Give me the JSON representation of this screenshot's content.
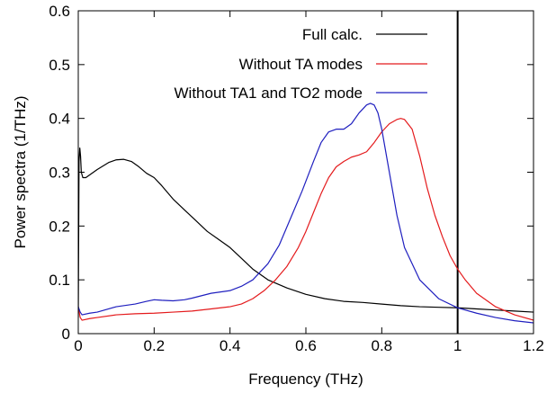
{
  "chart_data": {
    "type": "line",
    "xlabel": "Frequency (THz)",
    "ylabel": "Power spectra (1/THz)",
    "xlim": [
      0,
      1.2
    ],
    "ylim": [
      0,
      0.6
    ],
    "x_ticks": [
      0,
      0.2,
      0.4,
      0.6,
      0.8,
      1,
      1.2
    ],
    "x_tick_labels": [
      "0",
      "0.2",
      "0.4",
      "0.6",
      "0.8",
      "1",
      "1.2"
    ],
    "y_ticks": [
      0,
      0.1,
      0.2,
      0.3,
      0.4,
      0.5,
      0.6
    ],
    "y_tick_labels": [
      "0",
      "0.1",
      "0.2",
      "0.3",
      "0.4",
      "0.5",
      "0.6"
    ],
    "grid": false,
    "legend_position": "top-right",
    "reference_lines": [
      {
        "orientation": "vertical",
        "x": 1,
        "color": "#000000"
      }
    ],
    "series": [
      {
        "name": "Full calc.",
        "color": "#000000",
        "x": [
          0.0,
          0.002,
          0.004,
          0.006,
          0.008,
          0.012,
          0.02,
          0.03,
          0.05,
          0.08,
          0.1,
          0.12,
          0.14,
          0.16,
          0.18,
          0.2,
          0.22,
          0.25,
          0.28,
          0.31,
          0.34,
          0.37,
          0.4,
          0.43,
          0.46,
          0.5,
          0.55,
          0.6,
          0.65,
          0.7,
          0.75,
          0.8,
          0.85,
          0.9,
          0.95,
          1.0,
          1.05,
          1.1,
          1.15,
          1.2
        ],
        "y": [
          0.03,
          0.32,
          0.345,
          0.33,
          0.3,
          0.29,
          0.29,
          0.295,
          0.305,
          0.318,
          0.323,
          0.324,
          0.32,
          0.31,
          0.298,
          0.29,
          0.275,
          0.25,
          0.23,
          0.21,
          0.19,
          0.175,
          0.16,
          0.14,
          0.12,
          0.1,
          0.085,
          0.073,
          0.065,
          0.06,
          0.058,
          0.055,
          0.052,
          0.05,
          0.049,
          0.048,
          0.046,
          0.044,
          0.042,
          0.04
        ]
      },
      {
        "name": "Without TA modes",
        "color": "#e41a1c",
        "x": [
          0.0,
          0.005,
          0.01,
          0.03,
          0.05,
          0.1,
          0.15,
          0.2,
          0.25,
          0.3,
          0.35,
          0.4,
          0.43,
          0.46,
          0.49,
          0.52,
          0.55,
          0.58,
          0.6,
          0.62,
          0.64,
          0.66,
          0.68,
          0.7,
          0.72,
          0.74,
          0.76,
          0.78,
          0.8,
          0.82,
          0.84,
          0.85,
          0.86,
          0.88,
          0.9,
          0.92,
          0.94,
          0.96,
          0.98,
          1.0,
          1.02,
          1.05,
          1.1,
          1.15,
          1.2
        ],
        "y": [
          0.05,
          0.03,
          0.025,
          0.028,
          0.03,
          0.035,
          0.037,
          0.038,
          0.04,
          0.042,
          0.046,
          0.05,
          0.055,
          0.065,
          0.08,
          0.1,
          0.125,
          0.16,
          0.19,
          0.225,
          0.26,
          0.29,
          0.31,
          0.32,
          0.328,
          0.332,
          0.338,
          0.355,
          0.375,
          0.39,
          0.398,
          0.4,
          0.398,
          0.38,
          0.33,
          0.27,
          0.22,
          0.18,
          0.145,
          0.12,
          0.1,
          0.075,
          0.05,
          0.035,
          0.025
        ]
      },
      {
        "name": "Without TA1 and TO2 mode",
        "color": "#1f1fbf",
        "x": [
          0.0,
          0.005,
          0.01,
          0.03,
          0.05,
          0.1,
          0.15,
          0.18,
          0.2,
          0.22,
          0.25,
          0.28,
          0.3,
          0.35,
          0.4,
          0.43,
          0.46,
          0.5,
          0.53,
          0.56,
          0.59,
          0.62,
          0.64,
          0.66,
          0.68,
          0.7,
          0.72,
          0.74,
          0.76,
          0.77,
          0.78,
          0.79,
          0.8,
          0.82,
          0.84,
          0.86,
          0.9,
          0.95,
          1.0,
          1.05,
          1.1,
          1.15,
          1.2
        ],
        "y": [
          0.05,
          0.04,
          0.035,
          0.038,
          0.04,
          0.05,
          0.055,
          0.06,
          0.063,
          0.062,
          0.061,
          0.063,
          0.066,
          0.075,
          0.08,
          0.088,
          0.1,
          0.13,
          0.165,
          0.215,
          0.265,
          0.32,
          0.355,
          0.375,
          0.38,
          0.38,
          0.39,
          0.41,
          0.425,
          0.428,
          0.425,
          0.41,
          0.38,
          0.3,
          0.22,
          0.16,
          0.1,
          0.065,
          0.048,
          0.038,
          0.03,
          0.024,
          0.02
        ]
      }
    ]
  }
}
